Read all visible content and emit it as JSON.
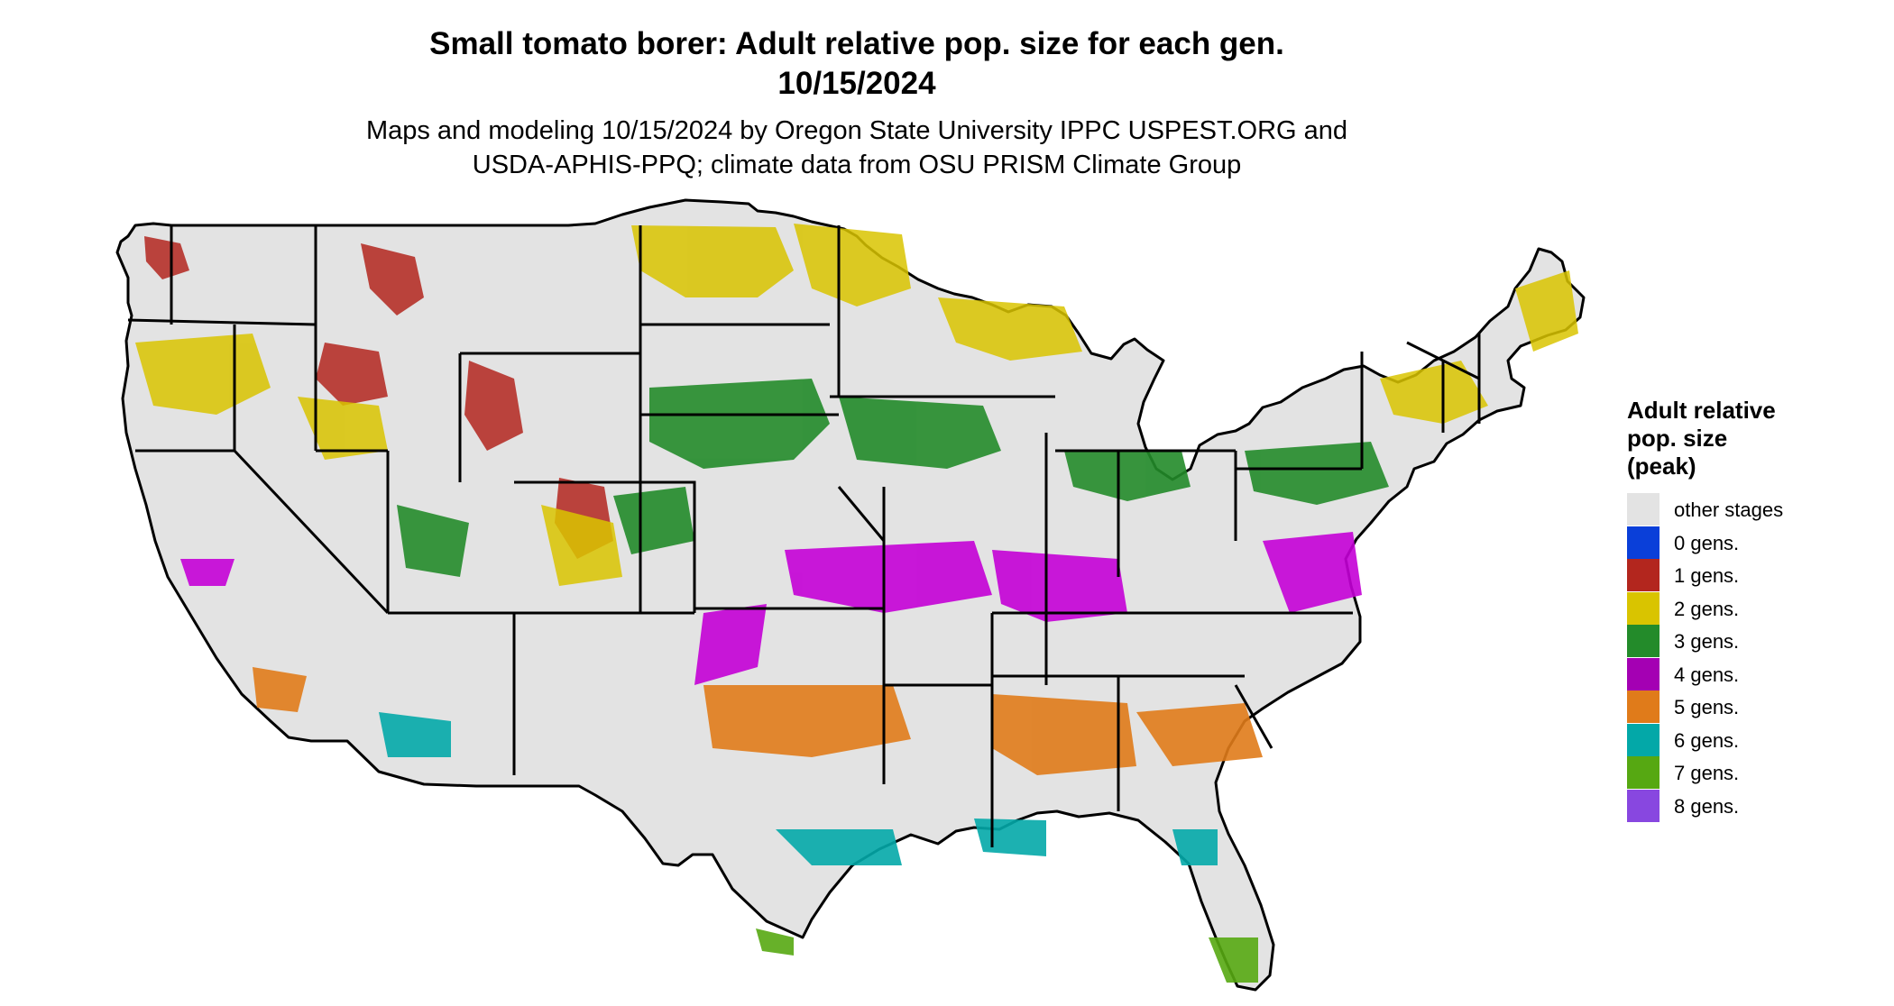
{
  "title": {
    "line1": "Small tomato borer: Adult relative pop. size for each gen.",
    "line2": "10/15/2024"
  },
  "subtitle": {
    "line1": "Maps and modeling 10/15/2024 by Oregon State University IPPC USPEST.ORG and",
    "line2": "USDA-APHIS-PPQ; climate data from OSU PRISM Climate Group"
  },
  "legend": {
    "title_line1": "Adult relative",
    "title_line2": "pop. size",
    "title_line3": "(peak)",
    "items": [
      {
        "label": "other stages",
        "color": "#e3e3e3"
      },
      {
        "label": "0 gens.",
        "color": "#0a3fd9"
      },
      {
        "label": "1 gens.",
        "color": "#b3261e"
      },
      {
        "label": "2 gens.",
        "color": "#d9c400"
      },
      {
        "label": "3 gens.",
        "color": "#238b2a"
      },
      {
        "label": "4 gens.",
        "color": "#a400b3"
      },
      {
        "label": "5 gens.",
        "color": "#e07b1a"
      },
      {
        "label": "6 gens.",
        "color": "#03a8a8"
      },
      {
        "label": "7 gens.",
        "color": "#56a812"
      },
      {
        "label": "8 gens.",
        "color": "#8847e0"
      }
    ]
  },
  "map": {
    "region": "contiguous-united-states",
    "boundaries": "state-borders",
    "background_color": "#e3e3e3"
  }
}
